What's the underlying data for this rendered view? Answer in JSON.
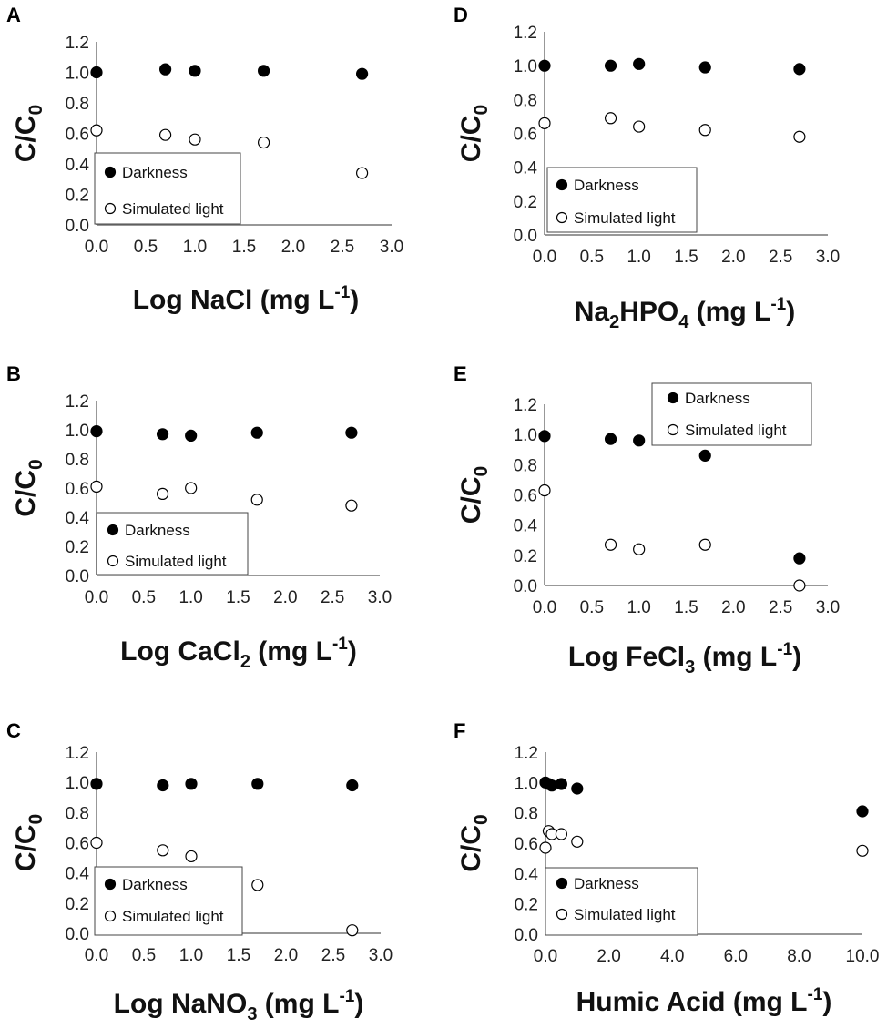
{
  "chart_data": [
    {
      "panel": "A",
      "type": "scatter",
      "ylabel": "C/C0",
      "xlabel": {
        "text": "Log NaCl (mg L",
        "sup": "-1",
        "end": ")"
      },
      "xlim": [
        0,
        3
      ],
      "ylim": [
        0,
        1.2
      ],
      "xticks": [
        "0.0",
        "0.5",
        "1.0",
        "1.5",
        "2.0",
        "2.5",
        "3.0"
      ],
      "yticks": [
        "0.0",
        "0.2",
        "0.4",
        "0.6",
        "0.8",
        "1.0",
        "1.2"
      ],
      "legend": "bottom-left",
      "series": [
        {
          "name": "Darkness",
          "marker": "filled",
          "x": [
            0,
            0.7,
            1.0,
            1.7,
            2.7
          ],
          "y": [
            1.0,
            1.02,
            1.01,
            1.01,
            0.99
          ]
        },
        {
          "name": "Simulated light",
          "marker": "open",
          "x": [
            0,
            0.7,
            1.0,
            1.7,
            2.7
          ],
          "y": [
            0.62,
            0.59,
            0.56,
            0.54,
            0.34
          ]
        }
      ]
    },
    {
      "panel": "B",
      "type": "scatter",
      "ylabel": "C/C0",
      "xlabel": {
        "text": "Log CaCl",
        "sub": "2",
        "text2": " (mg L",
        "sup": "-1",
        "end": ")"
      },
      "xlim": [
        0,
        3
      ],
      "ylim": [
        0,
        1.2
      ],
      "xticks": [
        "0.0",
        "0.5",
        "1.0",
        "1.5",
        "2.0",
        "2.5",
        "3.0"
      ],
      "yticks": [
        "0.0",
        "0.2",
        "0.4",
        "0.6",
        "0.8",
        "1.0",
        "1.2"
      ],
      "legend": "bottom-left",
      "series": [
        {
          "name": "Darkness",
          "marker": "filled",
          "x": [
            0,
            0.7,
            1.0,
            1.7,
            2.7
          ],
          "y": [
            0.99,
            0.97,
            0.96,
            0.98,
            0.98
          ]
        },
        {
          "name": "Simulated light",
          "marker": "open",
          "x": [
            0,
            0.7,
            1.0,
            1.7,
            2.7
          ],
          "y": [
            0.61,
            0.56,
            0.6,
            0.52,
            0.48
          ]
        }
      ]
    },
    {
      "panel": "C",
      "type": "scatter",
      "ylabel": "C/C0",
      "xlabel": {
        "text": "Log NaNO",
        "sub": "3",
        "text2": " (mg L",
        "sup": "-1",
        "end": ")"
      },
      "xlim": [
        0,
        3
      ],
      "ylim": [
        0,
        1.2
      ],
      "xticks": [
        "0.0",
        "0.5",
        "1.0",
        "1.5",
        "2.0",
        "2.5",
        "3.0"
      ],
      "yticks": [
        "0.0",
        "0.2",
        "0.4",
        "0.6",
        "0.8",
        "1.0",
        "1.2"
      ],
      "legend": "bottom-left",
      "series": [
        {
          "name": "Darkness",
          "marker": "filled",
          "x": [
            0,
            0.7,
            1.0,
            1.7,
            2.7
          ],
          "y": [
            0.99,
            0.98,
            0.99,
            0.99,
            0.98
          ]
        },
        {
          "name": "Simulated light",
          "marker": "open",
          "x": [
            0,
            0.7,
            1.0,
            1.7,
            2.7
          ],
          "y": [
            0.6,
            0.55,
            0.51,
            0.32,
            0.02
          ]
        }
      ]
    },
    {
      "panel": "D",
      "type": "scatter",
      "ylabel": "C/C0",
      "xlabel": {
        "text": "Na",
        "sub": "2",
        "text2": "HPO",
        "sub2": "4",
        "text3": " (mg L",
        "sup": "-1",
        "end": ")"
      },
      "xlim": [
        0,
        3
      ],
      "ylim": [
        0,
        1.2
      ],
      "xticks": [
        "0.0",
        "0.5",
        "1.0",
        "1.5",
        "2.0",
        "2.5",
        "3.0"
      ],
      "yticks": [
        "0.0",
        "0.2",
        "0.4",
        "0.6",
        "0.8",
        "1.0",
        "1.2"
      ],
      "legend": "bottom-left",
      "series": [
        {
          "name": "Darkness",
          "marker": "filled",
          "x": [
            0,
            0.7,
            1.0,
            1.7,
            2.7
          ],
          "y": [
            1.0,
            1.0,
            1.01,
            0.99,
            0.98
          ]
        },
        {
          "name": "Simulated light",
          "marker": "open",
          "x": [
            0,
            0.7,
            1.0,
            1.7,
            2.7
          ],
          "y": [
            0.66,
            0.69,
            0.64,
            0.62,
            0.58
          ]
        }
      ]
    },
    {
      "panel": "E",
      "type": "scatter",
      "ylabel": "C/C0",
      "xlabel": {
        "text": "Log FeCl",
        "sub": "3",
        "text2": " (mg L",
        "sup": "-1",
        "end": ")"
      },
      "xlim": [
        0,
        3
      ],
      "ylim": [
        0,
        1.2
      ],
      "xticks": [
        "0.0",
        "0.5",
        "1.0",
        "1.5",
        "2.0",
        "2.5",
        "3.0"
      ],
      "yticks": [
        "0.0",
        "0.2",
        "0.4",
        "0.6",
        "0.8",
        "1.0",
        "1.2"
      ],
      "legend": "top-right",
      "series": [
        {
          "name": "Darkness",
          "marker": "filled",
          "x": [
            0,
            0.7,
            1.0,
            1.7,
            2.7
          ],
          "y": [
            0.99,
            0.97,
            0.96,
            0.86,
            0.18
          ]
        },
        {
          "name": "Simulated light",
          "marker": "open",
          "x": [
            0,
            0.7,
            1.0,
            1.7,
            2.7
          ],
          "y": [
            0.63,
            0.27,
            0.24,
            0.27,
            0.0
          ]
        }
      ]
    },
    {
      "panel": "F",
      "type": "scatter",
      "ylabel": "C/C0",
      "xlabel": {
        "text": "Humic Acid (mg L",
        "sup": "-1",
        "end": ")"
      },
      "xlim": [
        0,
        10
      ],
      "ylim": [
        0,
        1.2
      ],
      "xticks": [
        "0.0",
        "2.0",
        "4.0",
        "6.0",
        "8.0",
        "10.0"
      ],
      "yticks": [
        "0.0",
        "0.2",
        "0.4",
        "0.6",
        "0.8",
        "1.0",
        "1.2"
      ],
      "legend": "bottom-left",
      "series": [
        {
          "name": "Darkness",
          "marker": "filled",
          "x": [
            0,
            0.1,
            0.2,
            0.5,
            1.0,
            10.0
          ],
          "y": [
            1.0,
            0.99,
            0.98,
            0.99,
            0.96,
            0.81
          ]
        },
        {
          "name": "Simulated light",
          "marker": "open",
          "x": [
            0,
            0.1,
            0.2,
            0.5,
            1.0,
            10.0
          ],
          "y": [
            0.57,
            0.68,
            0.66,
            0.66,
            0.61,
            0.55
          ]
        }
      ]
    }
  ]
}
